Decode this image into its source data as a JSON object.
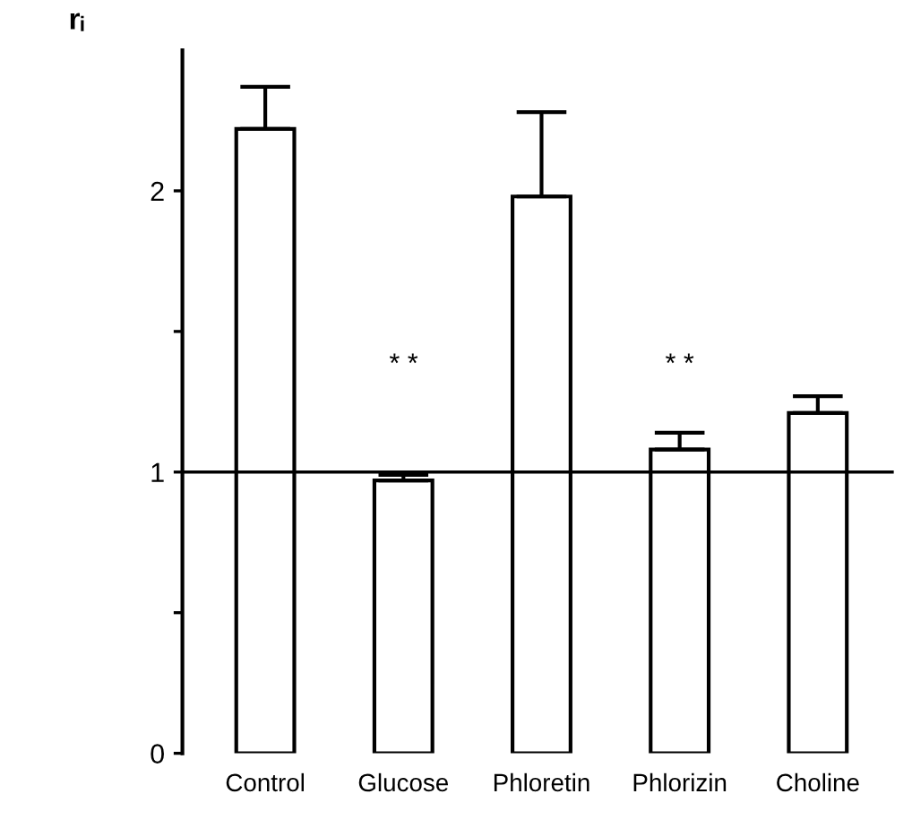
{
  "chart_data": {
    "type": "bar",
    "ylabel": "rᵢ",
    "categories": [
      "Control",
      "Glucose",
      "Phloretin",
      "Phlorizin",
      "Choline"
    ],
    "values": [
      2.22,
      0.97,
      1.98,
      1.08,
      1.21
    ],
    "errors": [
      [
        2.22,
        2.37
      ],
      [
        0.97,
        0.99
      ],
      [
        1.98,
        2.28
      ],
      [
        1.08,
        1.14
      ],
      [
        1.21,
        1.27
      ]
    ],
    "color": "#ffffff",
    "ylim": [
      0,
      2.5
    ],
    "yticks": [
      0,
      {
        "value": 0.5,
        "label": null
      },
      1,
      {
        "value": 1.5,
        "label": null
      },
      2
    ],
    "ref_lines": [
      {
        "axis": "y",
        "value": 1,
        "color": "#000000",
        "line_style": "solid"
      }
    ],
    "annotations": [
      "* *",
      "* *"
    ],
    "grid": false,
    "legend": false
  }
}
